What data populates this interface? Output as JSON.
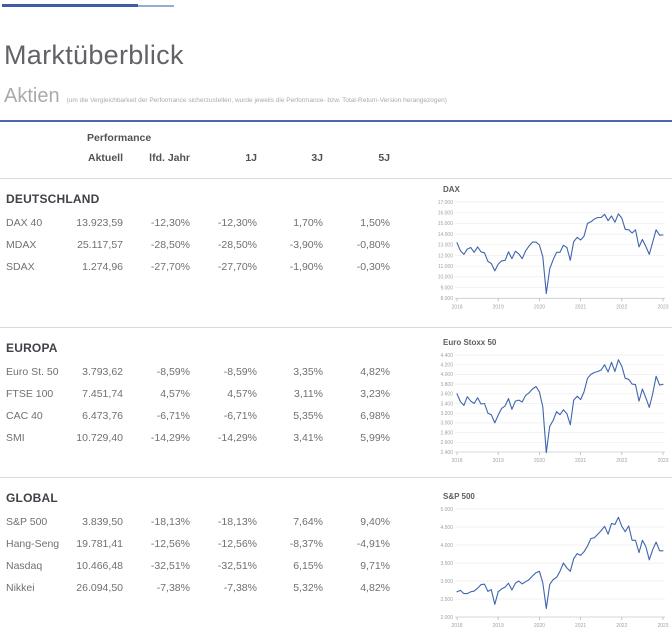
{
  "header": {
    "title": "Marktüberblick",
    "section_title": "Aktien",
    "section_note": "(um die Vergleichbarkeit der Performance sicherzustellen, wurde jeweils die Performance- bzw. Total-Return-Version herangezogen)"
  },
  "table": {
    "group_header": "Performance",
    "columns": [
      "Aktuell",
      "lfd. Jahr",
      "1J",
      "3J",
      "5J"
    ],
    "sections": [
      {
        "name": "DEUTSCHLAND",
        "rows": [
          {
            "label": "DAX 40",
            "values": [
              "13.923,59",
              "-12,30%",
              "-12,30%",
              "1,70%",
              "1,50%"
            ]
          },
          {
            "label": "MDAX",
            "values": [
              "25.117,57",
              "-28,50%",
              "-28,50%",
              "-3,90%",
              "-0,80%"
            ]
          },
          {
            "label": "SDAX",
            "values": [
              "1.274,96",
              "-27,70%",
              "-27,70%",
              "-1,90%",
              "-0,30%"
            ]
          }
        ]
      },
      {
        "name": "EUROPA",
        "rows": [
          {
            "label": "Euro St. 50",
            "values": [
              "3.793,62",
              "-8,59%",
              "-8,59%",
              "3,35%",
              "4,82%"
            ]
          },
          {
            "label": "FTSE 100",
            "values": [
              "7.451,74",
              "4,57%",
              "4,57%",
              "3,11%",
              "3,23%"
            ]
          },
          {
            "label": "CAC 40",
            "values": [
              "6.473,76",
              "-6,71%",
              "-6,71%",
              "5,35%",
              "6,98%"
            ]
          },
          {
            "label": "SMI",
            "values": [
              "10.729,40",
              "-14,29%",
              "-14,29%",
              "3,41%",
              "5,99%"
            ]
          }
        ]
      },
      {
        "name": "GLOBAL",
        "rows": [
          {
            "label": "S&P 500",
            "values": [
              "3.839,50",
              "-18,13%",
              "-18,13%",
              "7,64%",
              "9,40%"
            ]
          },
          {
            "label": "Hang-Seng",
            "values": [
              "19.781,41",
              "-12,56%",
              "-12,56%",
              "-8,37%",
              "-4,91%"
            ]
          },
          {
            "label": "Nasdaq",
            "values": [
              "10.466,48",
              "-32,51%",
              "-32,51%",
              "6,15%",
              "9,71%"
            ]
          },
          {
            "label": "Nikkei",
            "values": [
              "26.094,50",
              "-7,38%",
              "-7,38%",
              "5,32%",
              "4,82%"
            ]
          }
        ]
      }
    ]
  },
  "chart_data": [
    {
      "type": "line",
      "title": "DAX",
      "x_labels": [
        "2018",
        "2019",
        "2020",
        "2021",
        "2022",
        "2023"
      ],
      "y_tick_labels": [
        "17.000",
        "16.000",
        "15.000",
        "14.000",
        "13.000",
        "12.000",
        "11.000",
        "10.000",
        "9.000",
        "8.000"
      ],
      "y_tick_values": [
        17000,
        16000,
        15000,
        14000,
        13000,
        12000,
        11000,
        10000,
        9000,
        8000
      ],
      "ylim": [
        8000,
        17000
      ],
      "grid": true,
      "series": [
        {
          "name": "DAX",
          "values": [
            13200,
            12450,
            12100,
            12600,
            12750,
            12300,
            12800,
            12350,
            12250,
            11450,
            11250,
            10560,
            11200,
            11500,
            11550,
            12350,
            11700,
            12400,
            12150,
            11700,
            12450,
            12900,
            13250,
            13250,
            12980,
            11890,
            8440,
            10750,
            11600,
            12300,
            12300,
            12950,
            12750,
            11550,
            13300,
            13700,
            13450,
            13800,
            15000,
            15150,
            15400,
            15550,
            15550,
            15850,
            15250,
            15700,
            15100,
            15900,
            15500,
            14450,
            14400,
            14100,
            14400,
            12800,
            13500,
            12850,
            12100,
            13250,
            14400,
            13900,
            13920
          ]
        }
      ]
    },
    {
      "type": "line",
      "title": "Euro Stoxx 50",
      "x_labels": [
        "2018",
        "2019",
        "2020",
        "2021",
        "2022",
        "2023"
      ],
      "y_tick_labels": [
        "4.400",
        "4.200",
        "4.000",
        "3.800",
        "3.600",
        "3.400",
        "3.200",
        "3.000",
        "2.800",
        "2.600",
        "2.400"
      ],
      "y_tick_values": [
        4400,
        4200,
        4000,
        3800,
        3600,
        3400,
        3200,
        3000,
        2800,
        2600,
        2400
      ],
      "ylim": [
        2400,
        4400
      ],
      "grid": true,
      "series": [
        {
          "name": "Euro Stoxx 50",
          "values": [
            3600,
            3440,
            3360,
            3540,
            3450,
            3400,
            3520,
            3390,
            3400,
            3200,
            3170,
            3000,
            3160,
            3300,
            3350,
            3500,
            3280,
            3450,
            3470,
            3430,
            3570,
            3620,
            3700,
            3750,
            3640,
            3330,
            2385,
            2930,
            3050,
            3230,
            3170,
            3270,
            3190,
            2960,
            3470,
            3550,
            3480,
            3640,
            3920,
            4000,
            4040,
            4060,
            4090,
            4200,
            4050,
            4250,
            4060,
            4300,
            4170,
            3920,
            3900,
            3800,
            3790,
            3450,
            3700,
            3520,
            3320,
            3600,
            3960,
            3780,
            3795
          ]
        }
      ]
    },
    {
      "type": "line",
      "title": "S&P 500",
      "x_labels": [
        "2018",
        "2019",
        "2020",
        "2021",
        "2022",
        "2023"
      ],
      "y_tick_labels": [
        "5.000",
        "4.500",
        "4.000",
        "3.500",
        "3.000",
        "2.500",
        "2.000"
      ],
      "y_tick_values": [
        5000,
        4500,
        4000,
        3500,
        3000,
        2500,
        2000
      ],
      "ylim": [
        2000,
        5000
      ],
      "grid": true,
      "series": [
        {
          "name": "S&P 500",
          "values": [
            2700,
            2740,
            2650,
            2650,
            2700,
            2720,
            2800,
            2900,
            2910,
            2710,
            2760,
            2350,
            2700,
            2780,
            2830,
            2940,
            2750,
            2940,
            3000,
            2920,
            2980,
            3040,
            3140,
            3230,
            3270,
            2950,
            2237,
            2900,
            3040,
            3100,
            3270,
            3500,
            3360,
            3270,
            3620,
            3760,
            3710,
            3810,
            3970,
            4180,
            4200,
            4300,
            4400,
            4520,
            4300,
            4600,
            4570,
            4770,
            4520,
            4370,
            4530,
            4130,
            4130,
            3790,
            4130,
            3960,
            3590,
            3870,
            4080,
            3840,
            3840
          ]
        }
      ]
    }
  ],
  "colors": {
    "accent_dark": "#3c5ca6",
    "accent_light": "#96aad6",
    "rule_blue": "#4a69b2",
    "rule_gray": "#d9dadc",
    "line_blue": "#4065af",
    "grid_line": "#eeeeee",
    "axis_line": "#c9cacc",
    "tick_mark": "#b6b7ba",
    "text_dark": "#404248",
    "text_mid": "#6e7075",
    "text_light": "#a8aaae"
  }
}
